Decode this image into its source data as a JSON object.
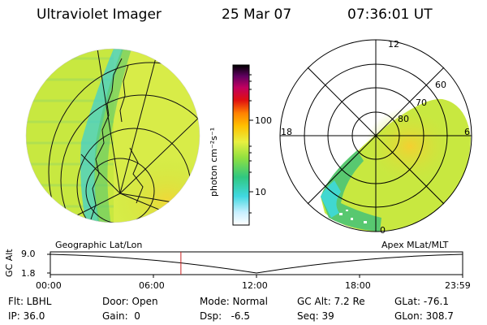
{
  "header": {
    "instrument": "Ultraviolet Imager",
    "date": "25 Mar 07",
    "time": "07:36:01 UT"
  },
  "left_panel": {
    "label": "Geographic Lat/Lon"
  },
  "right_panel": {
    "label": "Apex MLat/MLT",
    "mlt_labels": {
      "top": "12",
      "left": "18",
      "right": "6",
      "bottom": "0"
    },
    "lat_labels": [
      "60",
      "70",
      "80"
    ]
  },
  "colorbar": {
    "unit_label": "photon cm⁻²s⁻¹",
    "ticks": [
      "100",
      "10"
    ],
    "colors": [
      "#ffffff",
      "#c8f0ff",
      "#40d8e0",
      "#30c880",
      "#90e040",
      "#e8f040",
      "#ffc000",
      "#ff8000",
      "#e01010",
      "#c00060",
      "#600060",
      "#000000"
    ]
  },
  "timeline": {
    "ylabel": "GC Alt",
    "y_ticks": [
      "9.0",
      "1.8"
    ],
    "x_ticks": [
      "00:00",
      "06:00",
      "12:00",
      "18:00",
      "23:59"
    ],
    "current_time_fraction": 0.3167,
    "marker_color": "#cc2222"
  },
  "status": {
    "filter": "Flt: LBHL",
    "ip": "IP: 36.0",
    "door": "Door: Open",
    "gain": "Gain:  0",
    "mode": "Mode: Normal",
    "dsp": "Dsp:   -6.5",
    "gc_alt": "GC Alt: 7.2 Re",
    "seq": "Seq: 39",
    "glat": "GLat: -76.1",
    "glon": "GLon: 308.7"
  },
  "colors": {
    "fill_main": "#c8e840",
    "fill_hot": "#f0d030",
    "fill_cool": "#40d8d0",
    "fill_green": "#58c870"
  }
}
